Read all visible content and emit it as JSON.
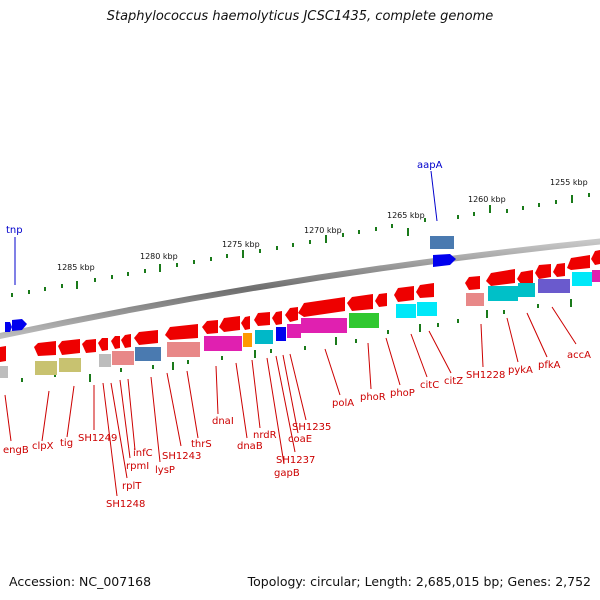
{
  "title": "Staphylococcus haemolyticus JCSC1435, complete genome",
  "accession": "Accession: NC_007168",
  "summary": "Topology: circular; Length: 2,685,015 bp; Genes: 2,752",
  "scale_labels": [
    "1285 kbp",
    "1280 kbp",
    "1275 kbp",
    "1270 kbp",
    "1265 kbp",
    "1260 kbp",
    "1255 kbp"
  ],
  "top_genes": [
    "tnp",
    "aapA"
  ],
  "bottom_genes": [
    "engB",
    "clpX",
    "tig",
    "SH1249",
    "SH1248",
    "rplT",
    "rpmI",
    "infC",
    "lysP",
    "SH1243",
    "thrS",
    "dnaI",
    "dnaB",
    "nrdR",
    "gapB",
    "SH1237",
    "coaE",
    "SH1235",
    "polA",
    "phoR",
    "phoP",
    "citC",
    "citZ",
    "SH1228",
    "pykA",
    "pfkA",
    "accA"
  ],
  "colors": {
    "backbone": "#808080",
    "forward_gene": "#0000ee",
    "reverse_gene": "#ee0000",
    "tick": "#1a7a1a",
    "label_forward": "#0000cc",
    "label_reverse": "#cc0000"
  }
}
